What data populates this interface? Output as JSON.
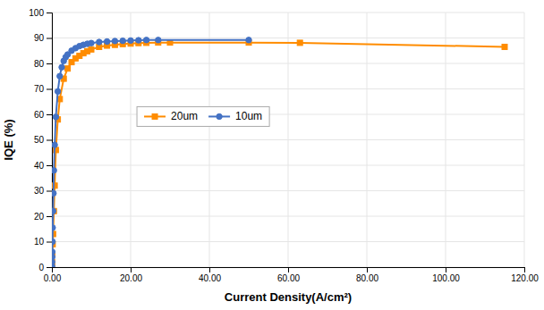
{
  "chart_data": {
    "type": "line",
    "xlabel": "Current Density(A/cm²)",
    "ylabel": "IQE (%)",
    "series": [
      {
        "name": "20um",
        "color": "#FF8C00",
        "marker": "square",
        "x": [
          0.0,
          0.05,
          0.1,
          0.2,
          0.3,
          0.5,
          0.7,
          1.0,
          1.5,
          2.0,
          3.0,
          4.0,
          5.0,
          6.0,
          7.0,
          8.0,
          9.0,
          10.0,
          12.0,
          14.0,
          16.0,
          18.0,
          20.0,
          22.0,
          24.0,
          27.0,
          30.0,
          50.0,
          63.0,
          115.0
        ],
        "values": [
          0.0,
          2.0,
          5.0,
          9.0,
          13.0,
          22.0,
          32.0,
          46.0,
          58.0,
          66.0,
          74.0,
          78.0,
          80.5,
          82.0,
          83.0,
          84.0,
          84.8,
          85.5,
          86.5,
          87.0,
          87.3,
          87.6,
          87.8,
          88.0,
          88.1,
          88.2,
          88.2,
          88.2,
          88.1,
          86.5
        ]
      },
      {
        "name": "10um",
        "color": "#4472C4",
        "marker": "circle",
        "x": [
          0.0,
          0.02,
          0.05,
          0.08,
          0.1,
          0.15,
          0.2,
          0.3,
          0.4,
          0.5,
          0.7,
          1.0,
          1.5,
          2.0,
          2.5,
          3.0,
          3.5,
          4.0,
          5.0,
          6.0,
          7.0,
          8.0,
          9.0,
          10.0,
          12.0,
          14.0,
          16.0,
          18.0,
          20.0,
          22.0,
          24.0,
          27.0,
          50.0
        ],
        "values": [
          0.0,
          0.5,
          2.0,
          4.0,
          6.0,
          10.0,
          15.5,
          22.0,
          29.0,
          38.0,
          48.0,
          59.0,
          69.0,
          75.0,
          78.5,
          81.0,
          82.5,
          83.5,
          85.0,
          86.0,
          86.8,
          87.3,
          87.7,
          88.0,
          88.4,
          88.6,
          88.8,
          88.9,
          89.0,
          89.1,
          89.2,
          89.2,
          89.2
        ]
      }
    ],
    "xlim": [
      0,
      120
    ],
    "xticks": [
      {
        "value": 0,
        "label": "0.00"
      },
      {
        "value": 20,
        "label": "20.00"
      },
      {
        "value": 40,
        "label": "40.00"
      },
      {
        "value": 60,
        "label": "60.00"
      },
      {
        "value": 80,
        "label": "80.00"
      },
      {
        "value": 100,
        "label": "100.00"
      },
      {
        "value": 120,
        "label": "120.00"
      }
    ],
    "ylim": [
      0,
      100
    ],
    "yticks": [
      0,
      10,
      20,
      30,
      40,
      50,
      60,
      70,
      80,
      90,
      100
    ],
    "grid": true,
    "legend": "upper left"
  }
}
